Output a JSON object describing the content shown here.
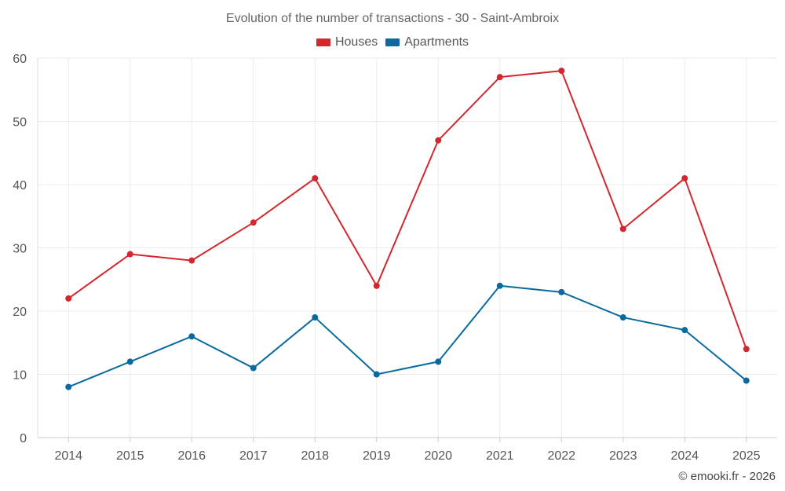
{
  "chart_data": {
    "type": "line",
    "title": "Evolution of the number of transactions - 30 - Saint-Ambroix",
    "categories": [
      "2014",
      "2015",
      "2016",
      "2017",
      "2018",
      "2019",
      "2020",
      "2021",
      "2022",
      "2023",
      "2024",
      "2025"
    ],
    "series": [
      {
        "name": "Houses",
        "color": "#d0282e",
        "values": [
          22,
          29,
          28,
          34,
          41,
          24,
          47,
          57,
          58,
          33,
          41,
          14
        ]
      },
      {
        "name": "Apartments",
        "color": "#0a6aa0",
        "values": [
          8,
          12,
          16,
          11,
          19,
          10,
          12,
          24,
          23,
          19,
          17,
          9
        ]
      }
    ],
    "xlabel": "",
    "ylabel": "",
    "ylim": [
      0,
      60
    ],
    "yticks": [
      0,
      10,
      20,
      30,
      40,
      50,
      60
    ],
    "grid": true,
    "legend_position": "top-center"
  },
  "credit": "© emooki.fr - 2026"
}
